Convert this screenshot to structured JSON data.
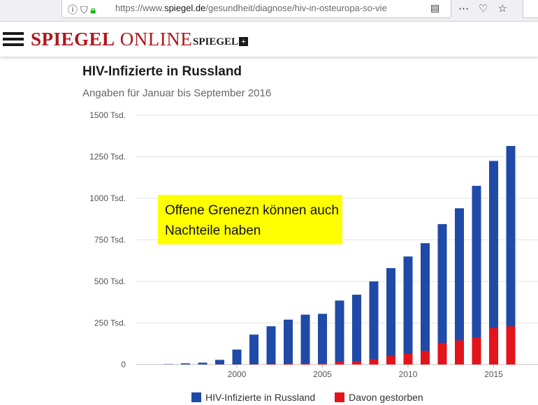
{
  "browser": {
    "url_scheme": "https://www.",
    "url_host": "spiegel.de",
    "url_path": "/gesundheit/diagnose/hiv-in-osteuropa-so-vie"
  },
  "site": {
    "logo_bold": "SPIEGEL",
    "logo_regular": "ONLINE",
    "secondary_logo": "SPIEGEL",
    "secondary_logo_plus": "+"
  },
  "note": {
    "text": "Offene Grenezn können auch Nachteile haben",
    "color": "#ffff00"
  },
  "chart_data": {
    "type": "bar",
    "stacking": "overlap",
    "title": "HIV-Infizierte in Russland",
    "subtitle": "Angaben für Januar bis September 2016",
    "xlabel": "",
    "ylabel": "",
    "ylim": [
      0,
      1500
    ],
    "yticks": [
      0,
      250,
      500,
      750,
      1000,
      1250,
      1500
    ],
    "ytick_labels": [
      "0",
      "250 Tsd.",
      "500 Tsd.",
      "750 Tsd.",
      "1000 Tsd.",
      "1250 Tsd.",
      "1500 Tsd."
    ],
    "xticks": [
      2000,
      2005,
      2010,
      2015
    ],
    "xtick_labels": [
      "2000",
      "2005",
      "2010",
      "2015"
    ],
    "grid": true,
    "legend_position": "bottom",
    "categories": [
      1996,
      1997,
      1998,
      1999,
      2000,
      2001,
      2002,
      2003,
      2004,
      2005,
      2006,
      2007,
      2008,
      2009,
      2010,
      2011,
      2012,
      2013,
      2014,
      2015,
      2016
    ],
    "series": [
      {
        "name": "HIV-Infizierte in Russland",
        "color": "#1f4aa8",
        "values": [
          2,
          7,
          11,
          28,
          90,
          180,
          230,
          270,
          300,
          305,
          385,
          420,
          500,
          580,
          650,
          730,
          845,
          940,
          1075,
          1225,
          1315
        ]
      },
      {
        "name": "Davon gestorben",
        "color": "#e3141b",
        "values": [
          0,
          0,
          0,
          1,
          1,
          2,
          3,
          6,
          7,
          8,
          16,
          20,
          32,
          52,
          65,
          82,
          130,
          145,
          162,
          220,
          230
        ]
      }
    ]
  }
}
